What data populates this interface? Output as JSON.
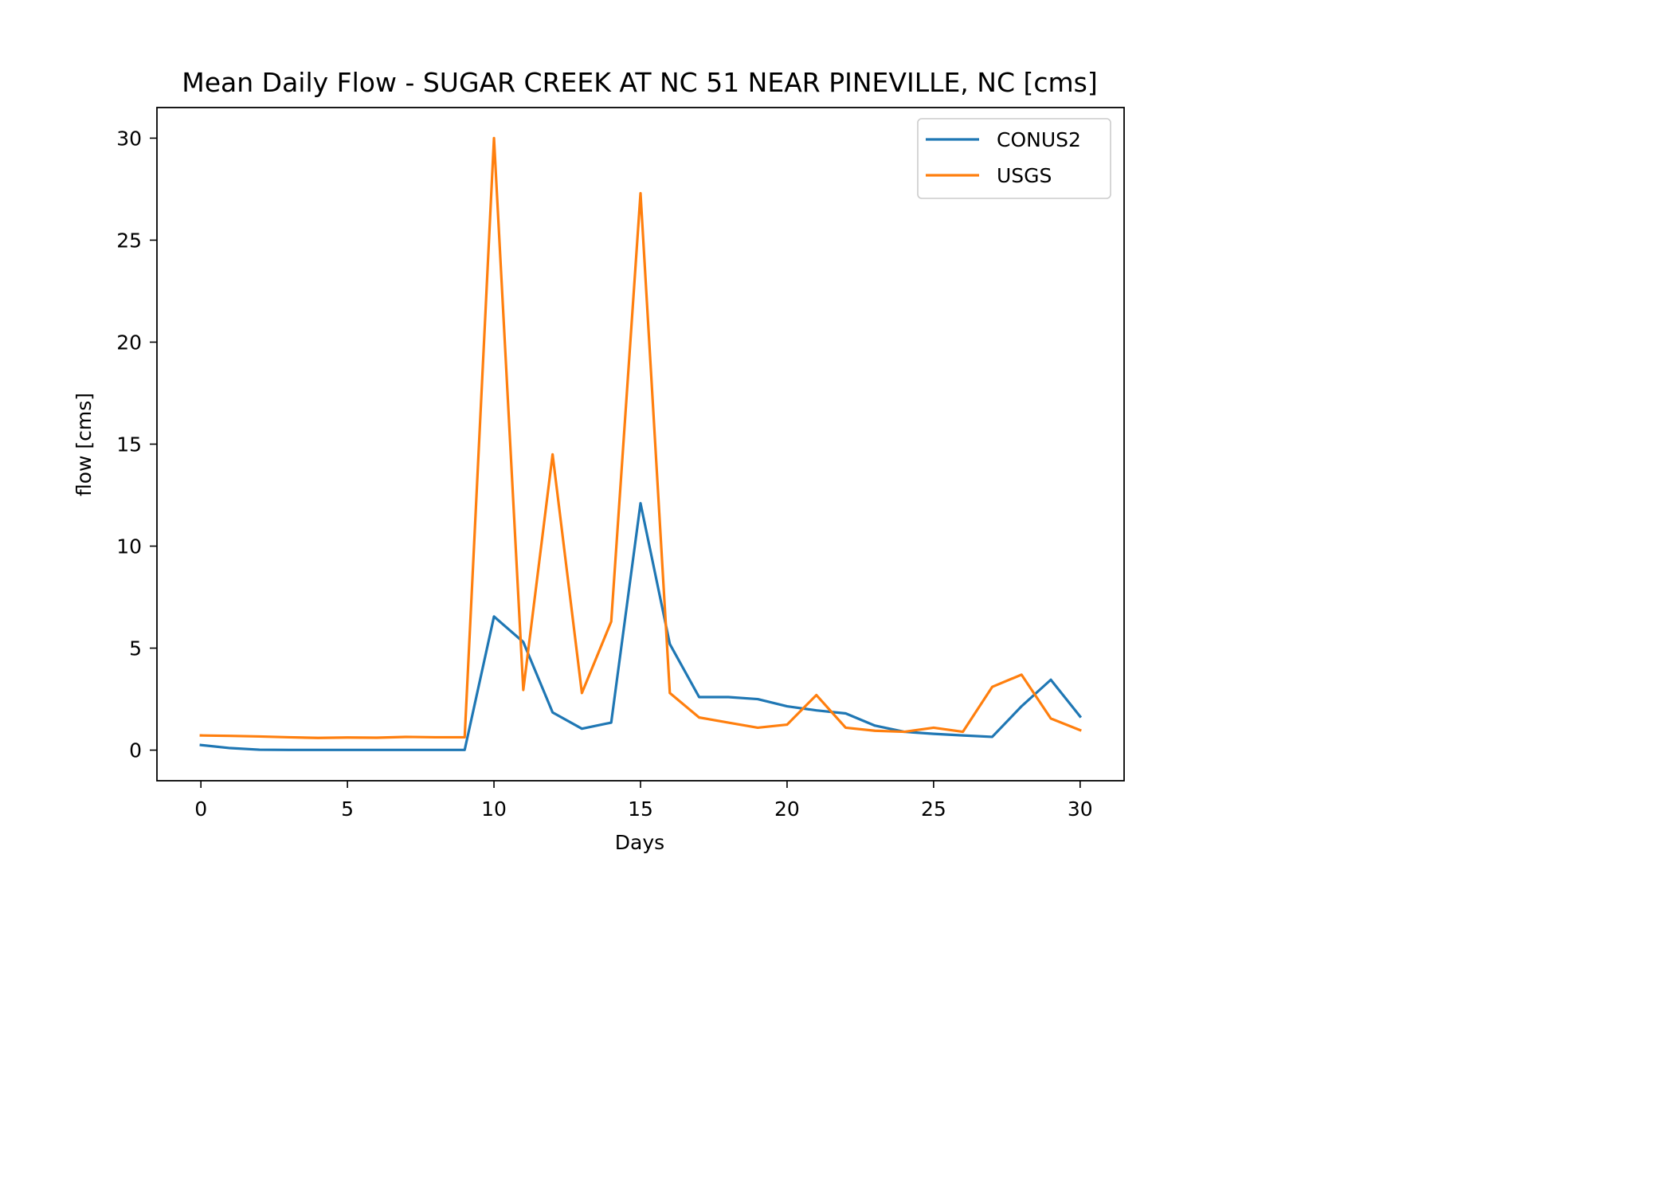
{
  "chart_data": {
    "type": "line",
    "title": "Mean Daily Flow - SUGAR CREEK AT NC 51 NEAR PINEVILLE, NC [cms]",
    "xlabel": "Days",
    "ylabel": "flow [cms]",
    "xlim": [
      -1.5,
      31.5
    ],
    "ylim": [
      -1.5,
      31.5
    ],
    "xticks": [
      0,
      5,
      10,
      15,
      20,
      25,
      30
    ],
    "yticks": [
      0,
      5,
      10,
      15,
      20,
      25,
      30
    ],
    "grid": false,
    "legend_position": "top-right",
    "x": [
      0,
      1,
      2,
      3,
      4,
      5,
      6,
      7,
      8,
      9,
      10,
      11,
      12,
      13,
      14,
      15,
      16,
      17,
      18,
      19,
      20,
      21,
      22,
      23,
      24,
      25,
      26,
      27,
      28,
      29,
      30
    ],
    "series": [
      {
        "name": "CONUS2",
        "color": "#1f77b4",
        "values": [
          0.25,
          0.1,
          0.02,
          0.01,
          0.01,
          0.01,
          0.01,
          0.01,
          0.01,
          0.01,
          6.55,
          5.3,
          1.85,
          1.05,
          1.35,
          12.1,
          5.2,
          2.6,
          2.6,
          2.5,
          2.15,
          1.95,
          1.8,
          1.2,
          0.9,
          0.8,
          0.72,
          0.65,
          2.15,
          3.45,
          1.65
        ]
      },
      {
        "name": "USGS",
        "color": "#ff7f0e",
        "values": [
          0.72,
          0.7,
          0.67,
          0.63,
          0.6,
          0.62,
          0.61,
          0.65,
          0.63,
          0.63,
          30.0,
          2.95,
          14.5,
          2.8,
          6.3,
          27.3,
          2.8,
          1.6,
          1.35,
          1.1,
          1.25,
          2.7,
          1.1,
          0.95,
          0.9,
          1.1,
          0.9,
          3.1,
          3.7,
          1.55,
          0.98
        ]
      }
    ]
  }
}
